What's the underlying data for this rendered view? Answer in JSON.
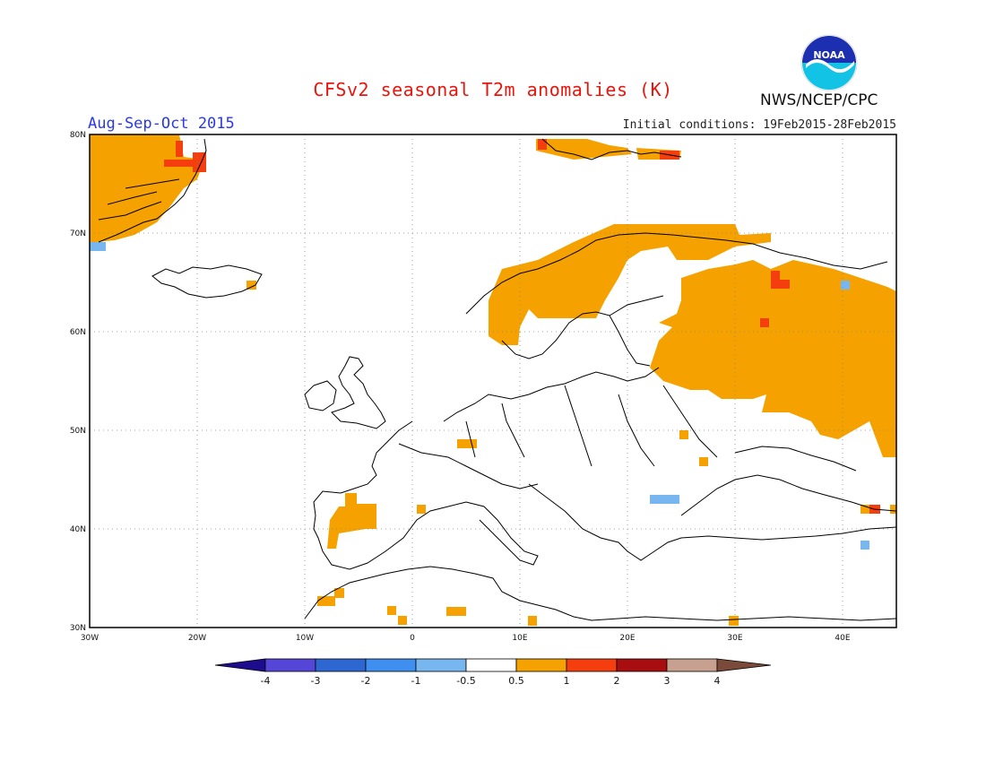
{
  "title": "CFSv2 seasonal T2m anomalies (K)",
  "period": "Aug-Sep-Oct 2015",
  "initial_conditions": "Initial conditions: 19Feb2015-28Feb2015",
  "agency": "NWS/NCEP/CPC",
  "logo_text": "NOAA",
  "lat_labels": [
    "80N",
    "70N",
    "60N",
    "50N",
    "40N",
    "30N"
  ],
  "lon_labels": [
    "30W",
    "20W",
    "10W",
    "0",
    "10E",
    "20E",
    "30E",
    "40E"
  ],
  "colorbar": {
    "labels": [
      "-4",
      "-3",
      "-2",
      "-1",
      "-0.5",
      "0.5",
      "1",
      "2",
      "3",
      "4"
    ],
    "colors": [
      "#1e0c8f",
      "#5646d8",
      "#2e66d2",
      "#3f8ff0",
      "#78b6f0",
      "#ffffff",
      "#f5a100",
      "#f53e0d",
      "#a80d10",
      "#c8a090",
      "#7a4a3a"
    ]
  },
  "anomaly_colors": {
    "warm_1": "#f5a100",
    "warm_2": "#f53e0d",
    "cool_1": "#78b6f0"
  }
}
